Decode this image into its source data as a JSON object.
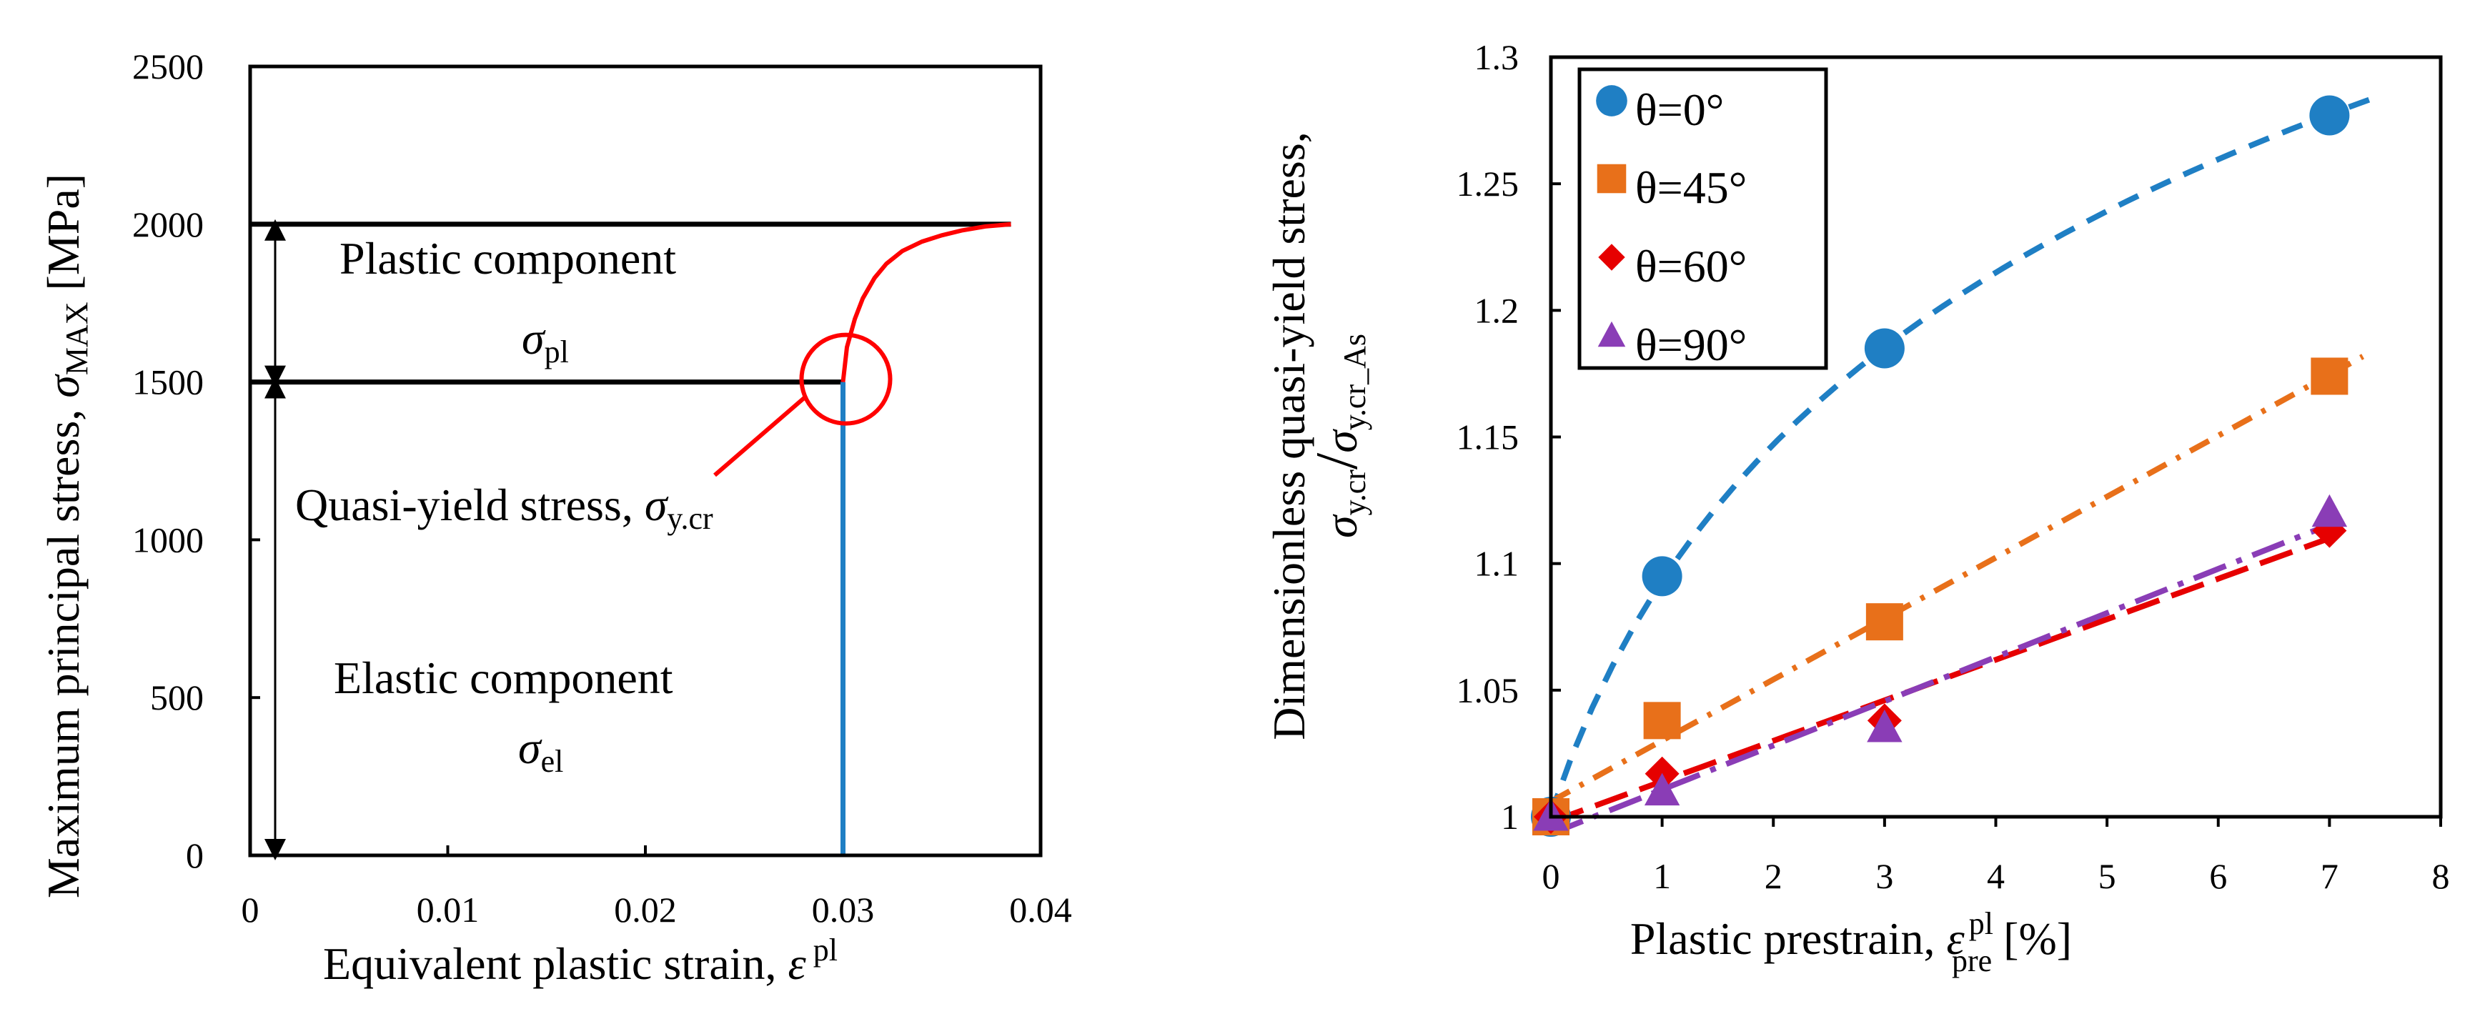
{
  "chart_data": [
    {
      "type": "line",
      "title": "",
      "xlabel": "Equivalent plastic strain, ε pl",
      "ylabel": "Maximum principal stress, σMAX [MPa]",
      "xlim": [
        0,
        0.04
      ],
      "ylim": [
        0,
        2500
      ],
      "xticks": [
        "0",
        "0.01",
        "0.02",
        "0.03",
        "0.04"
      ],
      "yticks": [
        "0",
        "500",
        "1000",
        "1500",
        "2000",
        "2500"
      ],
      "grid": false,
      "series": [
        {
          "name": "stress curve",
          "color": "#ff0000",
          "x": [
            0.03,
            0.0302,
            0.0306,
            0.031,
            0.0316,
            0.0322,
            0.033,
            0.034,
            0.035,
            0.036,
            0.0372,
            0.0385
          ],
          "y": [
            1500,
            1610,
            1700,
            1765,
            1830,
            1875,
            1915,
            1945,
            1965,
            1980,
            1993,
            2000
          ]
        }
      ],
      "reference_lines": {
        "max_stress": 2000,
        "quasi_yield_stress": 1500,
        "strain_at_yield": 0.03
      },
      "annotations": {
        "plastic": "Plastic component",
        "sigma": "σ",
        "plastic_sub": "pl",
        "quasi_yield": "Quasi-yield stress, ",
        "quasi_yield_sub": "y.cr",
        "elastic": "Elastic component",
        "elastic_sub": "el"
      },
      "axis_text": {
        "ylabel_main": "Maximum principal stress, ",
        "ylabel_sigma": "σ",
        "ylabel_sub": "MAX",
        "ylabel_unit": " [MPa]",
        "xlabel_main": "Equivalent plastic strain, ",
        "xlabel_eps": "ε",
        "xlabel_sup": "pl"
      }
    },
    {
      "type": "scatter",
      "title": "",
      "xlabel": "Plastic prestrain, ε pl pre [%]",
      "ylabel": "Dimensionless quasi-yield stress, σy.cr/σy.cr_As",
      "xlim": [
        0,
        8
      ],
      "ylim": [
        1,
        1.3
      ],
      "xticks": [
        "0",
        "1",
        "2",
        "3",
        "4",
        "5",
        "6",
        "7",
        "8"
      ],
      "yticks": [
        "1",
        "1.05",
        "1.1",
        "1.15",
        "1.2",
        "1.25",
        "1.3"
      ],
      "grid": false,
      "legend_position": "top-left",
      "series": [
        {
          "name": "θ=0°",
          "color": "#1f7fc4",
          "marker": "circle",
          "x": [
            0,
            1,
            3,
            7
          ],
          "y": [
            1.0,
            1.095,
            1.185,
            1.277
          ],
          "fit": {
            "style": "dash",
            "x_end": 7.4
          }
        },
        {
          "name": "θ=45°",
          "color": "#e8701a",
          "marker": "square",
          "x": [
            0,
            1,
            3,
            7
          ],
          "y": [
            1.0,
            1.038,
            1.077,
            1.174
          ],
          "fit": {
            "style": "dashdot",
            "x_end": 7.3
          }
        },
        {
          "name": "θ=60°",
          "color": "#e60000",
          "marker": "diamond",
          "x": [
            0,
            1,
            3,
            7
          ],
          "y": [
            1.0,
            1.017,
            1.038,
            1.113
          ],
          "fit": {
            "style": "longdash",
            "x_end": 7.1
          }
        },
        {
          "name": "θ=90°",
          "color": "#8a3db6",
          "marker": "triangle",
          "x": [
            0,
            1,
            3,
            7
          ],
          "y": [
            1.0,
            1.01,
            1.035,
            1.12
          ],
          "fit": {
            "style": "longdashdot",
            "x_end": 7.1
          }
        }
      ],
      "axis_text": {
        "ylabel_line1": "Dimensionless quasi-yield stress,",
        "ylabel_num": "σ",
        "ylabel_num_sub": "y.cr",
        "ylabel_slash": "/",
        "ylabel_den": "σ",
        "ylabel_den_sub": "y.cr_As",
        "xlabel_main": "Plastic prestrain, ",
        "xlabel_eps": "ε",
        "xlabel_sup": "pl",
        "xlabel_sub": "pre",
        "xlabel_unit": " [%]"
      }
    }
  ]
}
